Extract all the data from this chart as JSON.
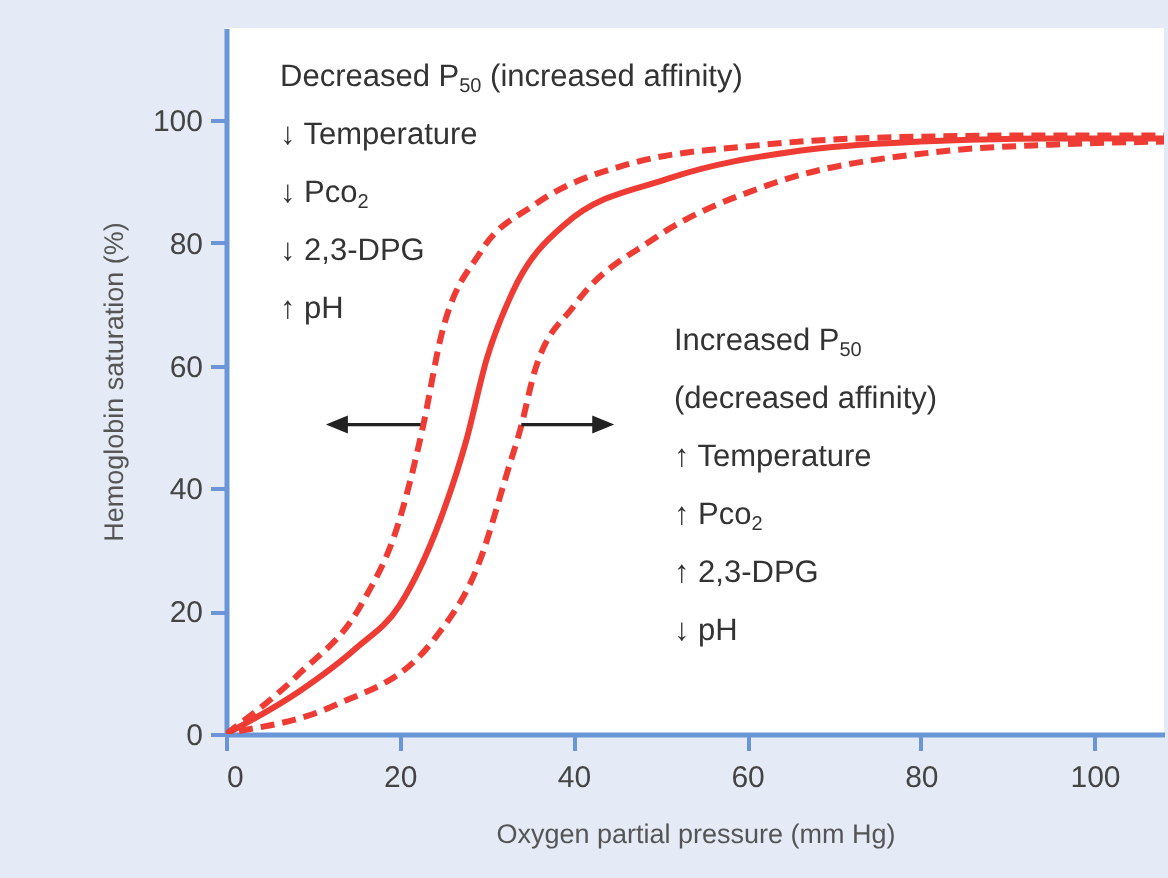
{
  "chart_data": {
    "type": "line",
    "xlabel": "Oxygen partial pressure (mm Hg)",
    "ylabel": "Hemoglobin saturation (%)",
    "xlim": [
      0,
      108
    ],
    "ylim": [
      0,
      115
    ],
    "xticks": [
      0,
      20,
      40,
      60,
      80,
      100
    ],
    "yticks": [
      0,
      20,
      40,
      60,
      80,
      100
    ],
    "grid": false,
    "series": [
      {
        "color": "#ee3b33",
        "line_style": "solid",
        "x": [
          0,
          8.5,
          15,
          20,
          24.7,
          27.7,
          30,
          33,
          39,
          51,
          66,
          80,
          95,
          108
        ],
        "values": [
          0,
          7,
          14,
          21,
          35,
          48,
          61,
          72,
          83,
          90.5,
          95,
          96.5,
          97,
          97
        ]
      },
      {
        "color": "#ee3b33",
        "line_style": "dashed",
        "x": [
          0,
          8.5,
          15.5,
          20,
          22.7,
          24.7,
          29.3,
          35.5,
          46,
          62,
          80,
          95,
          108
        ],
        "values": [
          0,
          9.9,
          20.9,
          35,
          50.2,
          64.4,
          78.5,
          86.2,
          92.7,
          96,
          97.3,
          97.5,
          97.5
        ]
      },
      {
        "color": "#ee3b33",
        "line_style": "dashed",
        "x": [
          1.5,
          12.4,
          24,
          29.3,
          32.4,
          34,
          35.5,
          40.1,
          49.3,
          62.4,
          81.7,
          95,
          108
        ],
        "values": [
          0.5,
          4.6,
          15.5,
          28.5,
          42.7,
          50.2,
          58.9,
          69.8,
          80.7,
          89.4,
          94.8,
          96,
          96.5
        ]
      }
    ],
    "annotations": [
      "Decreased P$_{50}$ (increased affinity)\n↓ Temperature\n↓ Pco$_{2}$\n↓ 2,3-DPG\n↑ pH",
      "Increased P$_{50}$\n(decreased affinity)\n↑ Temperature\n↑ Pco$_{2}$\n↑ 2,3-DPG\n↓ pH"
    ]
  }
}
